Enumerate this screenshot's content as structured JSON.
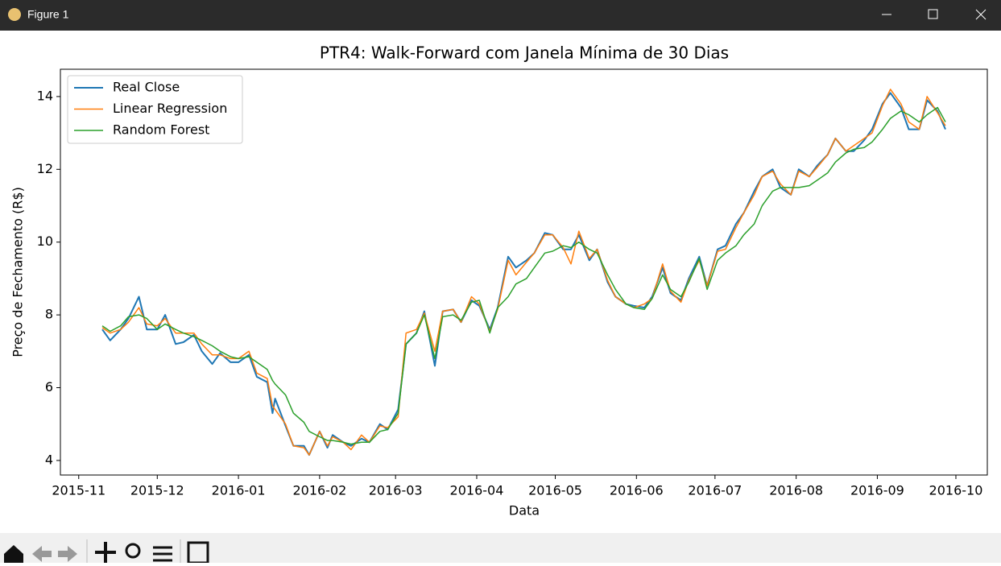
{
  "window": {
    "title": "Figure 1"
  },
  "chart_data": {
    "type": "line",
    "title": "PTR4: Walk-Forward com Janela Mínima de 30 Dias",
    "xlabel": "Data",
    "ylabel": "Preço de Fechamento (R$)",
    "x": [
      "2015-11-10",
      "2015-11-13",
      "2015-11-17",
      "2015-11-20",
      "2015-11-24",
      "2015-11-27",
      "2015-12-01",
      "2015-12-04",
      "2015-12-08",
      "2015-12-11",
      "2015-12-15",
      "2015-12-18",
      "2015-12-22",
      "2015-12-25",
      "2015-12-29",
      "2016-01-01",
      "2016-01-05",
      "2016-01-08",
      "2016-01-12",
      "2016-01-14",
      "2016-01-15",
      "2016-01-19",
      "2016-01-22",
      "2016-01-26",
      "2016-01-28",
      "2016-02-01",
      "2016-02-04",
      "2016-02-06",
      "2016-02-10",
      "2016-02-13",
      "2016-02-17",
      "2016-02-20",
      "2016-02-24",
      "2016-02-27",
      "2016-03-02",
      "2016-03-05",
      "2016-03-09",
      "2016-03-12",
      "2016-03-16",
      "2016-03-19",
      "2016-03-23",
      "2016-03-26",
      "2016-03-30",
      "2016-04-02",
      "2016-04-06",
      "2016-04-09",
      "2016-04-13",
      "2016-04-16",
      "2016-04-20",
      "2016-04-23",
      "2016-04-27",
      "2016-04-30",
      "2016-05-04",
      "2016-05-07",
      "2016-05-10",
      "2016-05-14",
      "2016-05-17",
      "2016-05-21",
      "2016-05-24",
      "2016-05-28",
      "2016-05-31",
      "2016-06-04",
      "2016-06-07",
      "2016-06-11",
      "2016-06-14",
      "2016-06-18",
      "2016-06-21",
      "2016-06-25",
      "2016-06-28",
      "2016-07-02",
      "2016-07-05",
      "2016-07-09",
      "2016-07-12",
      "2016-07-16",
      "2016-07-19",
      "2016-07-23",
      "2016-07-26",
      "2016-07-30",
      "2016-08-02",
      "2016-08-06",
      "2016-08-09",
      "2016-08-13",
      "2016-08-16",
      "2016-08-20",
      "2016-08-23",
      "2016-08-27",
      "2016-08-30",
      "2016-09-03",
      "2016-09-06",
      "2016-09-10",
      "2016-09-13",
      "2016-09-17",
      "2016-09-20",
      "2016-09-24",
      "2016-09-27"
    ],
    "series": [
      {
        "name": "Real Close",
        "color": "#1f77b4",
        "values": [
          7.6,
          7.3,
          7.6,
          7.9,
          8.5,
          7.6,
          7.6,
          8.0,
          7.2,
          7.25,
          7.45,
          7.0,
          6.65,
          6.95,
          6.7,
          6.7,
          6.9,
          6.3,
          6.15,
          5.3,
          5.7,
          4.95,
          4.4,
          4.4,
          4.15,
          4.8,
          4.35,
          4.7,
          4.5,
          4.4,
          4.6,
          4.5,
          5.0,
          4.85,
          5.4,
          7.2,
          7.5,
          8.1,
          6.6,
          8.1,
          8.15,
          7.8,
          8.4,
          8.25,
          7.6,
          8.2,
          9.6,
          9.3,
          9.5,
          9.7,
          10.25,
          10.2,
          9.8,
          9.8,
          10.2,
          9.5,
          9.8,
          8.9,
          8.5,
          8.3,
          8.25,
          8.2,
          8.5,
          9.3,
          8.6,
          8.4,
          9.0,
          9.6,
          8.8,
          9.8,
          9.9,
          10.5,
          10.8,
          11.4,
          11.8,
          12.0,
          11.5,
          11.3,
          12.0,
          11.8,
          12.1,
          12.4,
          12.85,
          12.5,
          12.5,
          12.8,
          13.1,
          13.8,
          14.1,
          13.7,
          13.1,
          13.1,
          13.9,
          13.6,
          13.1
        ]
      },
      {
        "name": "Linear Regression",
        "color": "#ff7f0e",
        "values": [
          7.65,
          7.5,
          7.6,
          7.8,
          8.2,
          7.75,
          7.7,
          7.9,
          7.5,
          7.5,
          7.5,
          7.2,
          6.9,
          6.9,
          6.8,
          6.8,
          7.0,
          6.4,
          6.25,
          5.5,
          5.4,
          5.0,
          4.4,
          4.35,
          4.15,
          4.8,
          4.4,
          4.65,
          4.5,
          4.3,
          4.7,
          4.5,
          4.95,
          4.9,
          5.2,
          7.5,
          7.6,
          8.05,
          7.0,
          8.1,
          8.15,
          7.8,
          8.5,
          8.3,
          7.55,
          8.15,
          9.5,
          9.1,
          9.45,
          9.7,
          10.2,
          10.2,
          9.85,
          9.4,
          10.3,
          9.55,
          9.8,
          8.95,
          8.5,
          8.3,
          8.2,
          8.3,
          8.45,
          9.4,
          8.65,
          8.35,
          8.95,
          9.5,
          8.8,
          9.75,
          9.8,
          10.4,
          10.8,
          11.3,
          11.8,
          11.95,
          11.6,
          11.3,
          11.95,
          11.8,
          12.05,
          12.4,
          12.85,
          12.5,
          12.65,
          12.85,
          13.0,
          13.75,
          14.2,
          13.8,
          13.3,
          13.1,
          14.0,
          13.55,
          13.2
        ]
      },
      {
        "name": "Random Forest",
        "color": "#2ca02c",
        "values": [
          7.7,
          7.55,
          7.7,
          7.95,
          8.0,
          7.9,
          7.6,
          7.75,
          7.6,
          7.5,
          7.4,
          7.3,
          7.15,
          7.0,
          6.85,
          6.8,
          6.85,
          6.7,
          6.5,
          6.2,
          6.1,
          5.8,
          5.3,
          5.05,
          4.8,
          4.65,
          4.55,
          4.55,
          4.5,
          4.45,
          4.5,
          4.5,
          4.8,
          4.85,
          5.3,
          7.2,
          7.5,
          8.0,
          6.8,
          7.95,
          8.0,
          7.85,
          8.35,
          8.4,
          7.5,
          8.2,
          8.5,
          8.85,
          9.0,
          9.3,
          9.7,
          9.75,
          9.9,
          9.85,
          10.0,
          9.8,
          9.7,
          9.1,
          8.7,
          8.3,
          8.2,
          8.15,
          8.45,
          9.1,
          8.7,
          8.5,
          8.9,
          9.55,
          8.7,
          9.5,
          9.7,
          9.9,
          10.2,
          10.5,
          11.0,
          11.4,
          11.5,
          11.5,
          11.5,
          11.55,
          11.7,
          11.9,
          12.2,
          12.45,
          12.55,
          12.6,
          12.75,
          13.1,
          13.4,
          13.6,
          13.5,
          13.3,
          13.5,
          13.7,
          13.3
        ]
      }
    ],
    "xlim": [
      "2015-10-25",
      "2016-10-13"
    ],
    "xticks": [
      "2015-11",
      "2015-12",
      "2016-01",
      "2016-02",
      "2016-03",
      "2016-04",
      "2016-05",
      "2016-06",
      "2016-07",
      "2016-08",
      "2016-09",
      "2016-10"
    ],
    "ylim": [
      3.6,
      14.75
    ],
    "yticks": [
      4,
      6,
      8,
      10,
      12,
      14
    ],
    "legend": "upper left",
    "grid": false
  }
}
